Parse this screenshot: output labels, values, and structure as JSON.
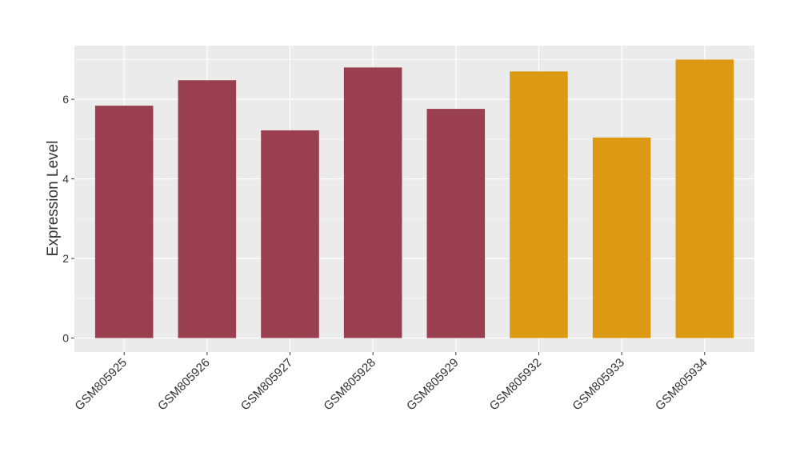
{
  "chart_data": {
    "type": "bar",
    "y_label": "Expression Level",
    "categories": [
      "GSM805925",
      "GSM805926",
      "GSM805927",
      "GSM805928",
      "GSM805929",
      "GSM805932",
      "GSM805933",
      "GSM805934"
    ],
    "values": [
      5.84,
      6.48,
      5.22,
      6.8,
      5.76,
      6.7,
      5.04,
      7.0
    ],
    "colors": [
      "#993f4f",
      "#993f4f",
      "#993f4f",
      "#993f4f",
      "#993f4f",
      "#db9914",
      "#db9914",
      "#db9914"
    ],
    "ylim": [
      -0.35,
      7.35
    ],
    "yticks": [
      0,
      2,
      4,
      6
    ],
    "minor_yticks": [
      1,
      3,
      5,
      7
    ],
    "grid": true
  }
}
